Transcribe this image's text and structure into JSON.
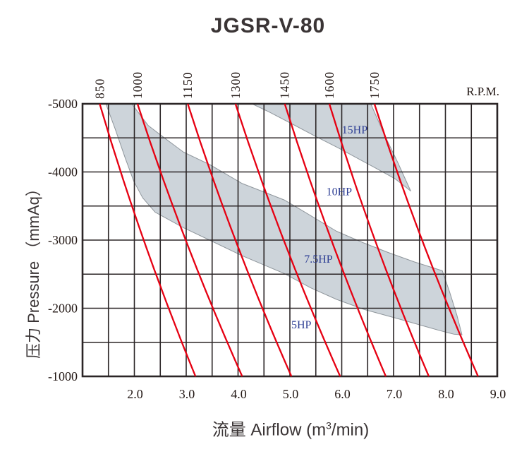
{
  "chart_data": {
    "type": "line",
    "title": "JGSR-V-80",
    "xlabel_prefix": "流量 Airflow (m",
    "xlabel_sup": "3",
    "xlabel_suffix": "/min)",
    "xlabel": "流量 Airflow (m³/min)",
    "ylabel": "压力 Pressure （mmAq）",
    "rpm_axis_label": "R.P.M.",
    "x_unit": "m³/min",
    "y_unit": "mmAq",
    "xlim": [
      1.0,
      9.0
    ],
    "ylim": [
      -5000,
      -1000
    ],
    "x_minor_step": 0.5,
    "y_minor_step": 500,
    "grid": true,
    "legend_position": "none",
    "x_ticks": [
      {
        "value": 2,
        "label": "2.0"
      },
      {
        "value": 3,
        "label": "3.0"
      },
      {
        "value": 4,
        "label": "4.0"
      },
      {
        "value": 5,
        "label": "5.0"
      },
      {
        "value": 6,
        "label": "6.0"
      },
      {
        "value": 7,
        "label": "7.0"
      },
      {
        "value": 8,
        "label": "8.0"
      },
      {
        "value": 9,
        "label": "9.0"
      }
    ],
    "y_ticks": [
      {
        "value": -5000,
        "label": "-5000"
      },
      {
        "value": -4000,
        "label": "-4000"
      },
      {
        "value": -3000,
        "label": "-3000"
      },
      {
        "value": -2000,
        "label": "-2000"
      },
      {
        "value": -1000,
        "label": "-1000"
      }
    ],
    "rpm_curves": [
      {
        "rpm": "850",
        "airflow_at_minus5000": 1.33,
        "airflow_mid": 2.18,
        "airflow_at_minus1000": 3.18
      },
      {
        "rpm": "1000",
        "airflow_at_minus5000": 2.06,
        "airflow_mid": 2.99,
        "airflow_at_minus1000": 4.08
      },
      {
        "rpm": "1150",
        "airflow_at_minus5000": 3.03,
        "airflow_mid": 3.95,
        "airflow_at_minus1000": 5.03
      },
      {
        "rpm": "1300",
        "airflow_at_minus5000": 3.95,
        "airflow_mid": 4.88,
        "airflow_at_minus1000": 5.97
      },
      {
        "rpm": "1450",
        "airflow_at_minus5000": 4.9,
        "airflow_mid": 5.8,
        "airflow_at_minus1000": 6.85
      },
      {
        "rpm": "1600",
        "airflow_at_minus5000": 5.76,
        "airflow_mid": 6.64,
        "airflow_at_minus1000": 7.68
      },
      {
        "rpm": "1750",
        "airflow_at_minus5000": 6.63,
        "airflow_mid": 7.55,
        "airflow_at_minus1000": 8.63
      }
    ],
    "hp_labels": [
      {
        "label": "15HP",
        "airflow": 6.25,
        "pressure": -4620
      },
      {
        "label": "10HP",
        "airflow": 5.95,
        "pressure": -3715
      },
      {
        "label": "7.5HP",
        "airflow": 5.55,
        "pressure": -2725
      },
      {
        "label": "5HP",
        "airflow": 5.22,
        "pressure": -1760
      }
    ],
    "bands": [
      {
        "name": "band-7.5HP",
        "points": [
          [
            1.45,
            -5000
          ],
          [
            1.95,
            -5000
          ],
          [
            2.27,
            -4680
          ],
          [
            2.58,
            -4500
          ],
          [
            2.95,
            -4290
          ],
          [
            3.45,
            -4110
          ],
          [
            4.08,
            -3830
          ],
          [
            4.89,
            -3590
          ],
          [
            5.29,
            -3410
          ],
          [
            5.9,
            -3130
          ],
          [
            6.42,
            -2960
          ],
          [
            6.89,
            -2820
          ],
          [
            7.4,
            -2680
          ],
          [
            7.94,
            -2550
          ],
          [
            8.08,
            -2240
          ],
          [
            8.22,
            -1900
          ],
          [
            8.32,
            -1610
          ],
          [
            8.16,
            -1620
          ],
          [
            7.9,
            -1670
          ],
          [
            7.67,
            -1720
          ],
          [
            7.07,
            -1850
          ],
          [
            6.44,
            -1980
          ],
          [
            5.9,
            -2130
          ],
          [
            5.4,
            -2300
          ],
          [
            4.89,
            -2510
          ],
          [
            4.08,
            -2770
          ],
          [
            3.45,
            -3000
          ],
          [
            2.95,
            -3180
          ],
          [
            2.4,
            -3410
          ],
          [
            2.16,
            -3620
          ],
          [
            1.99,
            -3860
          ],
          [
            1.82,
            -4210
          ],
          [
            1.63,
            -4630
          ]
        ]
      },
      {
        "name": "band-15HP",
        "points": [
          [
            4.27,
            -5000
          ],
          [
            6.56,
            -5000
          ],
          [
            6.82,
            -4550
          ],
          [
            7.08,
            -4140
          ],
          [
            7.33,
            -3720
          ],
          [
            7.03,
            -3900
          ],
          [
            6.62,
            -4070
          ],
          [
            5.94,
            -4350
          ],
          [
            5.5,
            -4520
          ],
          [
            5.03,
            -4710
          ],
          [
            4.6,
            -4880
          ]
        ]
      }
    ],
    "colors": {
      "curve_red": "#e60012",
      "band_fill": "#cdd4da",
      "band_edge": "#8f969c",
      "grid": "#2b2526",
      "tick_text": "#231815",
      "hp_text": "#2d3e94",
      "title_text": "#3a3435"
    }
  }
}
